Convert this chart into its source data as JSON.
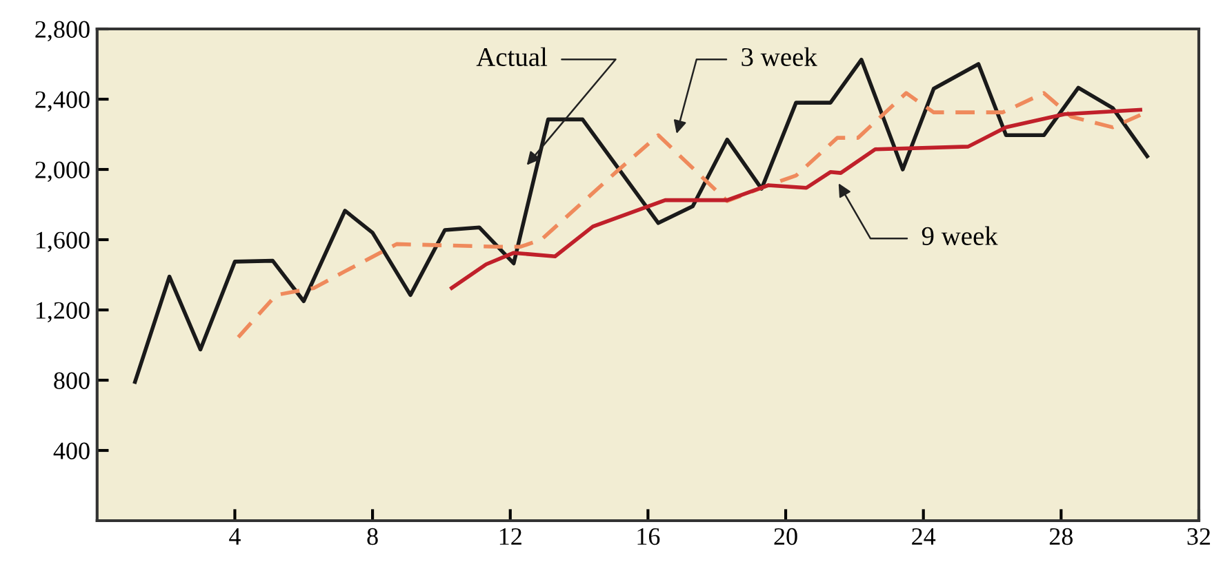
{
  "chart_data": {
    "type": "line",
    "xlim": [
      0,
      32
    ],
    "xticks": [
      4,
      8,
      12,
      16,
      20,
      24,
      28,
      32
    ],
    "ylim": [
      0,
      2800
    ],
    "yticks": [
      {
        "value": 400,
        "label": "400"
      },
      {
        "value": 800,
        "label": "800"
      },
      {
        "value": 1200,
        "label": "1,200"
      },
      {
        "value": 1600,
        "label": "1,600"
      },
      {
        "value": 2000,
        "label": "2,000"
      },
      {
        "value": 2400,
        "label": "2,400"
      },
      {
        "value": 2800,
        "label": "2,800"
      }
    ],
    "grid": false,
    "legend": false,
    "marker": "none",
    "series": [
      {
        "color": "#1a1a1a",
        "line_style": "solid",
        "x": [
          1.1,
          2.1,
          3.0,
          4.0,
          5.1,
          6.0,
          7.2,
          8.0,
          9.1,
          10.1,
          11.1,
          12.1,
          13.1,
          14.1,
          16.3,
          17.3,
          18.3,
          19.3,
          20.3,
          21.3,
          22.2,
          23.4,
          24.3,
          25.6,
          26.4,
          27.5,
          28.5,
          29.5,
          30.5
        ],
        "values": [
          790,
          1390,
          975,
          1475,
          1480,
          1250,
          1765,
          1640,
          1285,
          1655,
          1670,
          1465,
          2285,
          2285,
          1695,
          1790,
          2170,
          1890,
          2380,
          2380,
          2625,
          2000,
          2460,
          2600,
          2195,
          2195,
          2465,
          2350,
          2075
        ]
      },
      {
        "color": "#ef8a5c",
        "line_style": "dashed",
        "x": [
          4.1,
          5.2,
          6.3,
          7.2,
          8.7,
          11.6,
          12.3,
          12.9,
          15.1,
          16.3,
          18.3,
          19.5,
          20.3,
          21.5,
          22.1,
          23.5,
          24.3,
          26.3,
          27.5,
          28.3,
          29.5,
          30.3
        ],
        "values": [
          1045,
          1285,
          1325,
          1420,
          1575,
          1560,
          1560,
          1600,
          1990,
          2195,
          1820,
          1910,
          1965,
          2180,
          2180,
          2435,
          2325,
          2325,
          2435,
          2300,
          2240,
          2310
        ]
      },
      {
        "color": "#c0202a",
        "line_style": "solid",
        "x": [
          10.3,
          11.3,
          12.1,
          13.3,
          14.4,
          16.5,
          18.3,
          19.5,
          20.6,
          21.3,
          21.6,
          22.6,
          25.3,
          26.4,
          28.1,
          30.3
        ],
        "values": [
          1325,
          1460,
          1525,
          1505,
          1675,
          1825,
          1825,
          1910,
          1895,
          1985,
          1980,
          2115,
          2130,
          2240,
          2315,
          2340
        ]
      }
    ],
    "annotations": [
      "Actual",
      "3 week",
      "9 week"
    ]
  }
}
